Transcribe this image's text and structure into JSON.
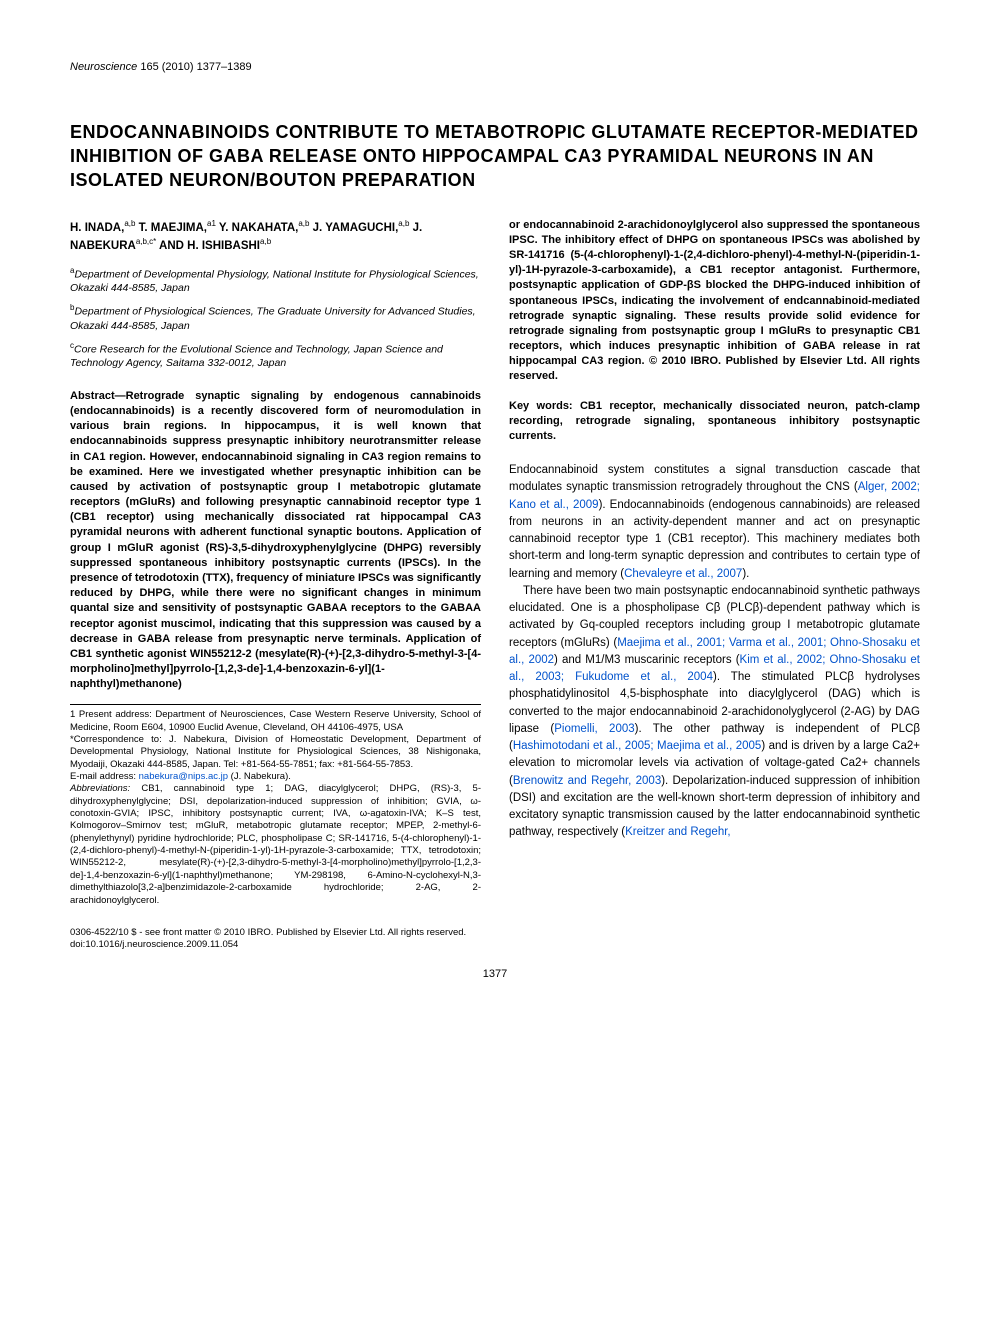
{
  "journal": {
    "name": "Neuroscience",
    "citation": "165 (2010) 1377–1389"
  },
  "title": "ENDOCANNABINOIDS CONTRIBUTE TO METABOTROPIC GLUTAMATE RECEPTOR-MEDIATED INHIBITION OF GABA RELEASE ONTO HIPPOCAMPAL CA3 PYRAMIDAL NEURONS IN AN ISOLATED NEURON/BOUTON PREPARATION",
  "authors_html": "H. INADA,<sup>a,b</sup> T. MAEJIMA,<sup>a1</sup> Y. NAKAHATA,<sup>a,b</sup> J. YAMAGUCHI,<sup>a,b</sup> J. NABEKURA<sup>a,b,c*</sup> AND H. ISHIBASHI<sup>a,b</sup>",
  "affiliations": [
    {
      "sup": "a",
      "text": "Department of Developmental Physiology, National Institute for Physiological Sciences, Okazaki 444-8585, Japan"
    },
    {
      "sup": "b",
      "text": "Department of Physiological Sciences, The Graduate University for Advanced Studies, Okazaki 444-8585, Japan"
    },
    {
      "sup": "c",
      "text": "Core Research for the Evolutional Science and Technology, Japan Science and Technology Agency, Saitama 332-0012, Japan"
    }
  ],
  "abstract_label": "Abstract—",
  "abstract_col1": "Retrograde synaptic signaling by endogenous cannabinoids (endocannabinoids) is a recently discovered form of neuromodulation in various brain regions. In hippocampus, it is well known that endocannabinoids suppress presynaptic inhibitory neurotransmitter release in CA1 region. However, endocannabinoid signaling in CA3 region remains to be examined. Here we investigated whether presynaptic inhibition can be caused by activation of postsynaptic group I metabotropic glutamate receptors (mGluRs) and following presynaptic cannabinoid receptor type 1 (CB1 receptor) using mechanically dissociated rat hippocampal CA3 pyramidal neurons with adherent functional synaptic boutons. Application of group I mGluR agonist (RS)-3,5-dihydroxyphenylglycine (DHPG) reversibly suppressed spontaneous inhibitory postsynaptic currents (IPSCs). In the presence of tetrodotoxin (TTX), frequency of miniature IPSCs was significantly reduced by DHPG, while there were no significant changes in minimum quantal size and sensitivity of postsynaptic GABAA receptors to the GABAA receptor agonist muscimol, indicating that this suppression was caused by a decrease in GABA release from presynaptic nerve terminals. Application of CB1 synthetic agonist WIN55212-2 (mesylate(R)-(+)-[2,3-dihydro-5-methyl-3-[4-morpholino]methyl]pyrrolo-[1,2,3-de]-1,4-benzoxazin-6-yl](1-naphthyl)methanone)",
  "abstract_col2": "or endocannabinoid 2-arachidonoylglycerol also suppressed the spontaneous IPSC. The inhibitory effect of DHPG on spontaneous IPSCs was abolished by SR-141716 (5-(4-chlorophenyl)-1-(2,4-dichloro-phenyl)-4-methyl-N-(piperidin-1-yl)-1H-pyrazole-3-carboxamide), a CB1 receptor antagonist. Furthermore, postsynaptic application of GDP-βS blocked the DHPG-induced inhibition of spontaneous IPSCs, indicating the involvement of endcannabinoid-mediated retrograde synaptic signaling. These results provide solid evidence for retrograde signaling from postsynaptic group I mGluRs to presynaptic CB1 receptors, which induces presynaptic inhibition of GABA release in rat hippocampal CA3 region. © 2010 IBRO. Published by Elsevier Ltd. All rights reserved.",
  "keywords": "Key words: CB1 receptor, mechanically dissociated neuron, patch-clamp recording, retrograde signaling, spontaneous inhibitory postsynaptic currents.",
  "intro_p1_a": "Endocannabinoid system constitutes a signal transduction cascade that modulates synaptic transmission retrogradely throughout the CNS (",
  "intro_p1_c1": "Alger, 2002; Kano et al., 2009",
  "intro_p1_b": "). Endocannabinoids (endogenous cannabinoids) are released from neurons in an activity-dependent manner and act on presynaptic cannabinoid receptor type 1 (CB1 receptor). This machinery mediates both short-term and long-term synaptic depression and contributes to certain type of learning and memory (",
  "intro_p1_c2": "Chevaleyre et al., 2007",
  "intro_p1_end": ").",
  "intro_p2_a": "There have been two main postsynaptic endocannabinoid synthetic pathways elucidated. One is a phospholipase Cβ (PLCβ)-dependent pathway which is activated by Gq-coupled receptors including group I metabotropic glutamate receptors (mGluRs) (",
  "intro_p2_c1": "Maejima et al., 2001; Varma et al., 2001; Ohno-Shosaku et al., 2002",
  "intro_p2_b": ") and M1/M3 muscarinic receptors (",
  "intro_p2_c2": "Kim et al., 2002; Ohno-Shosaku et al., 2003; Fukudome et al., 2004",
  "intro_p2_c": "). The stimulated PLCβ hydrolyses phosphatidylinositol 4,5-bisphosphate into diacylglycerol (DAG) which is converted to the major endocannabinoid 2-arachidonolyglycerol (2-AG) by DAG lipase (",
  "intro_p2_c3": "Piomelli, 2003",
  "intro_p2_d": "). The other pathway is independent of PLCβ (",
  "intro_p2_c4": "Hashimotodani et al., 2005; Maejima et al., 2005",
  "intro_p2_e": ") and is driven by a large Ca2+ elevation to micromolar levels via activation of voltage-gated Ca2+ channels (",
  "intro_p2_c5": "Brenowitz and Regehr, 2003",
  "intro_p2_f": "). Depolarization-induced suppression of inhibition (DSI) and excitation are the well-known short-term depression of inhibitory and excitatory synaptic transmission caused by the latter endocannabinoid synthetic pathway, respectively (",
  "intro_p2_c6": "Kreitzer and Regehr,",
  "footnotes": {
    "f1": "1 Present address: Department of Neurosciences, Case Western Reserve University, School of Medicine, Room E604, 10900 Euclid Avenue, Cleveland, OH 44106-4975, USA",
    "corr": "*Correspondence to: J. Nabekura, Division of Homeostatic Development, Department of Developmental Physiology, National Institute for Physiological Sciences, 38 Nishigonaka, Myodaiji, Okazaki 444-8585, Japan. Tel: +81-564-55-7851; fax: +81-564-55-7853.",
    "email_label": "E-mail address: ",
    "email": "nabekura@nips.ac.jp",
    "email_suffix": " (J. Nabekura).",
    "abbrev_label": "Abbreviations: ",
    "abbrev": "CB1, cannabinoid type 1; DAG, diacylglycerol; DHPG, (RS)-3, 5-dihydroxyphenylglycine; DSI, depolarization-induced suppression of inhibition; GVIA, ω-conotoxin-GVIA; IPSC, inhibitory postsynaptic current; IVA, ω-agatoxin-IVA; K–S test, Kolmogorov–Smirnov test; mGluR, metabotropic glutamate receptor; MPEP, 2-methyl-6-(phenylethynyl) pyridine hydrochloride; PLC, phospholipase C; SR-141716, 5-(4-chlorophenyl)-1-(2,4-dichloro-phenyl)-4-methyl-N-(piperidin-1-yl)-1H-pyrazole-3-carboxamide; TTX, tetrodotoxin; WIN55212-2, mesylate(R)-(+)-[2,3-dihydro-5-methyl-3-[4-morpholino)methyl]pyrrolo-[1,2,3-de]-1,4-benzoxazin-6-yl](1-naphthyl)methanone; YM-298198, 6-Amino-N-cyclohexyl-N,3-dimethylthiazolo[3,2-a]benzimidazole-2-carboxamide hydrochloride; 2-AG, 2-arachidonoylglycerol."
  },
  "copyright": "0306-4522/10 $ - see front matter © 2010 IBRO. Published by Elsevier Ltd. All rights reserved.",
  "doi": "doi:10.1016/j.neuroscience.2009.11.054",
  "pagenum": "1377",
  "colors": {
    "link": "#0052cc",
    "text": "#000000",
    "bg": "#ffffff"
  }
}
